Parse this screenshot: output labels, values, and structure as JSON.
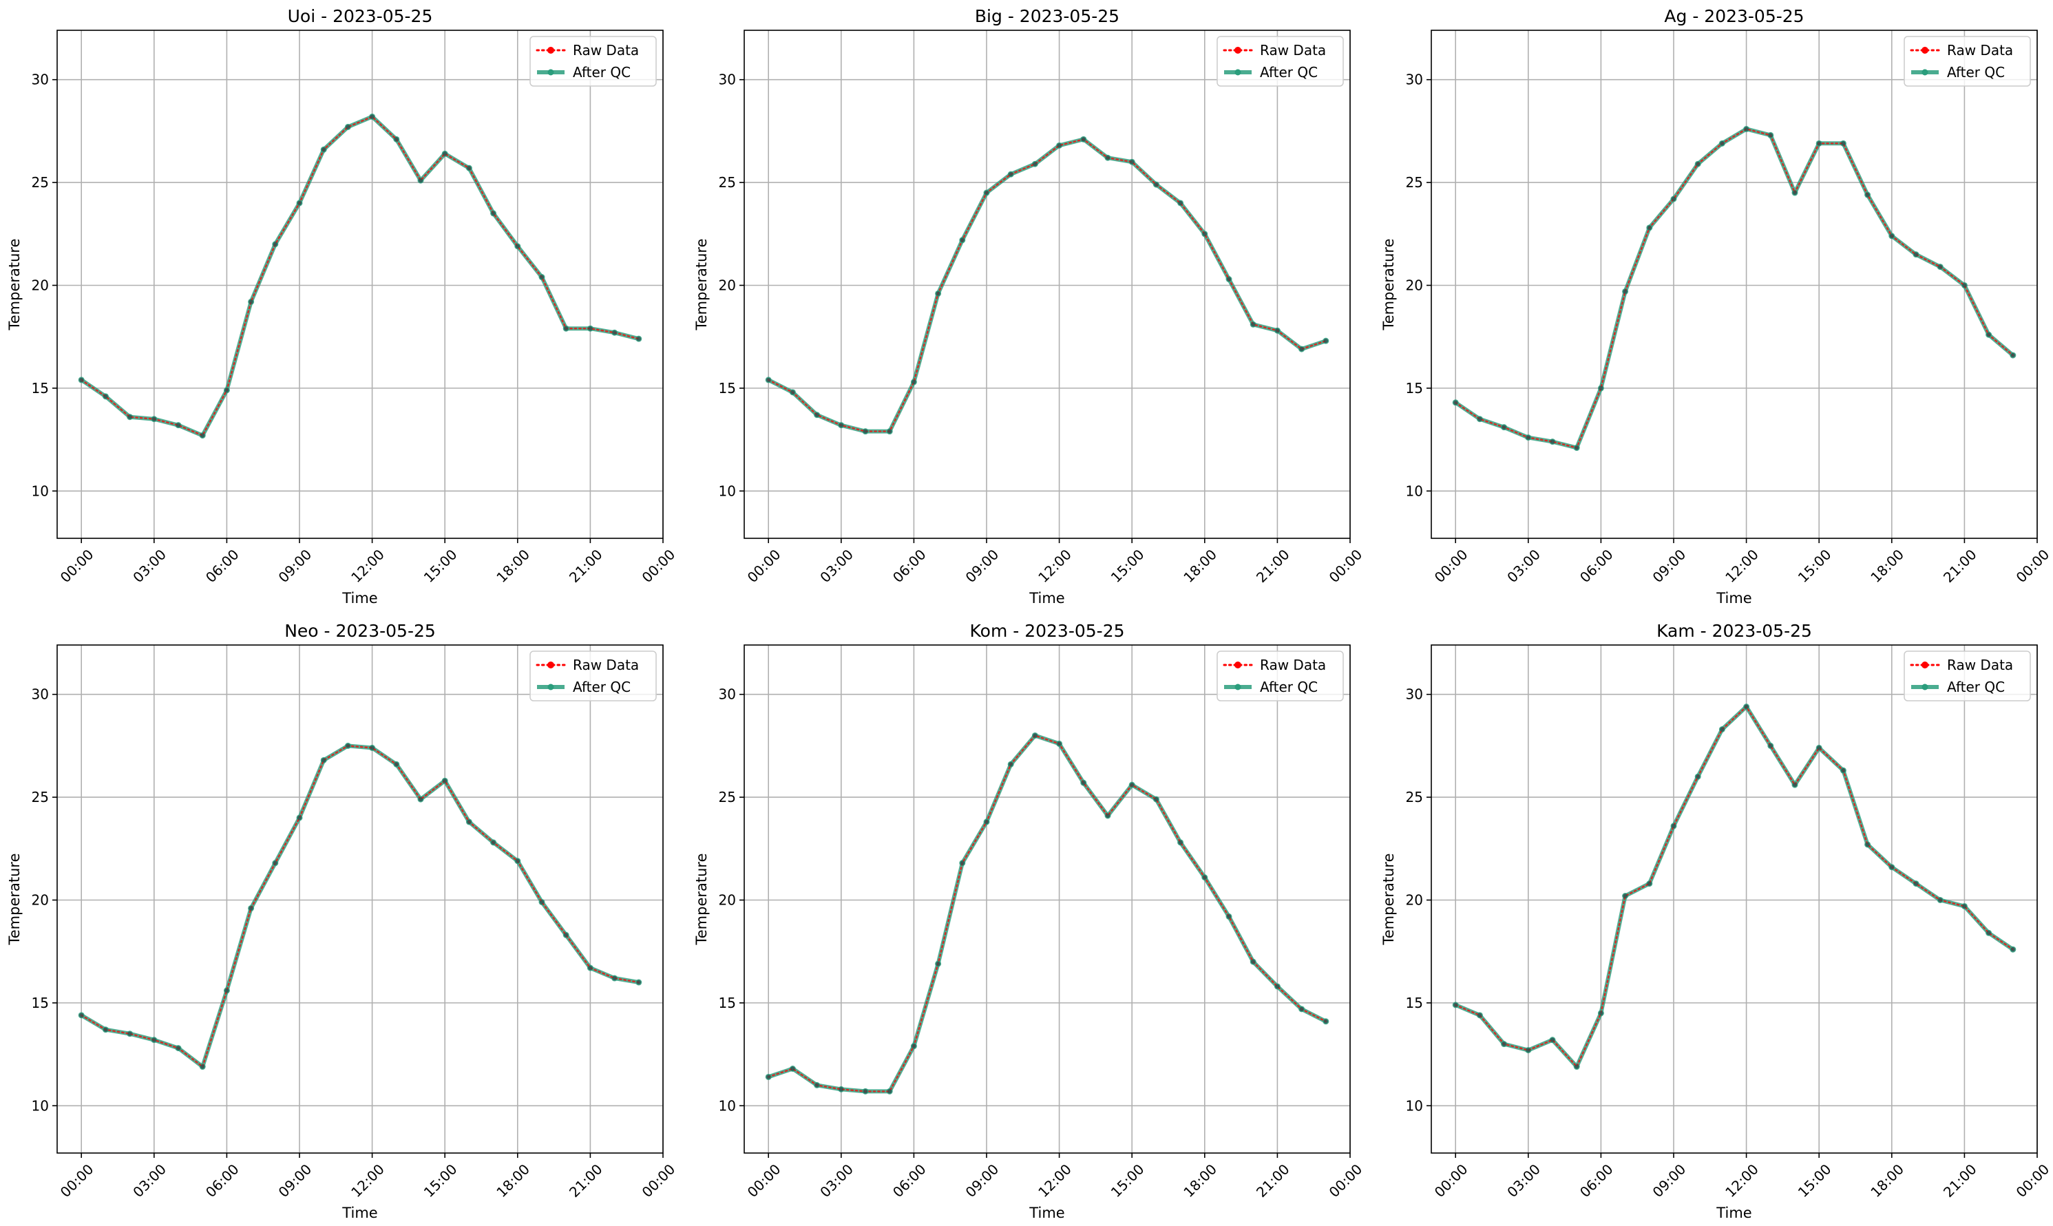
{
  "chart_data": [
    {
      "type": "line",
      "title": "Uoi - 2023-05-25",
      "xlabel": "Time",
      "ylabel": "Temperature",
      "ylim": [
        7.7,
        32.4
      ],
      "xlim": [
        "-01:00",
        "24:00"
      ],
      "x_ticks": [
        "00:00",
        "03:00",
        "06:00",
        "09:00",
        "12:00",
        "15:00",
        "18:00",
        "21:00",
        "00:00"
      ],
      "y_ticks": [
        10,
        15,
        20,
        25,
        30
      ],
      "grid": true,
      "legend": "top-right",
      "x": [
        "00:00",
        "01:00",
        "02:00",
        "03:00",
        "04:00",
        "05:00",
        "06:00",
        "07:00",
        "08:00",
        "09:00",
        "10:00",
        "11:00",
        "12:00",
        "13:00",
        "14:00",
        "15:00",
        "16:00",
        "17:00",
        "18:00",
        "19:00",
        "20:00",
        "21:00",
        "22:00",
        "23:00"
      ],
      "series": [
        {
          "name": "Raw Data",
          "color": "#ff0000",
          "style": "dotted",
          "values": [
            15.4,
            14.6,
            13.6,
            13.5,
            13.2,
            12.7,
            14.9,
            19.2,
            22.0,
            24.0,
            26.6,
            27.7,
            28.2,
            27.1,
            25.1,
            26.4,
            25.7,
            23.5,
            21.9,
            20.4,
            17.9,
            17.9,
            17.7,
            17.4
          ]
        },
        {
          "name": "After QC",
          "color": "#2a9d7c",
          "style": "solid",
          "values": [
            15.4,
            14.6,
            13.6,
            13.5,
            13.2,
            12.7,
            14.9,
            19.2,
            22.0,
            24.0,
            26.6,
            27.7,
            28.2,
            27.1,
            25.1,
            26.4,
            25.7,
            23.5,
            21.9,
            20.4,
            17.9,
            17.9,
            17.7,
            17.4
          ]
        }
      ]
    },
    {
      "type": "line",
      "title": "Big - 2023-05-25",
      "xlabel": "Time",
      "ylabel": "Temperature",
      "ylim": [
        7.7,
        32.4
      ],
      "xlim": [
        "-01:00",
        "24:00"
      ],
      "x_ticks": [
        "00:00",
        "03:00",
        "06:00",
        "09:00",
        "12:00",
        "15:00",
        "18:00",
        "21:00",
        "00:00"
      ],
      "y_ticks": [
        10,
        15,
        20,
        25,
        30
      ],
      "grid": true,
      "legend": "top-right",
      "x": [
        "00:00",
        "01:00",
        "02:00",
        "03:00",
        "04:00",
        "05:00",
        "06:00",
        "07:00",
        "08:00",
        "09:00",
        "10:00",
        "11:00",
        "12:00",
        "13:00",
        "14:00",
        "15:00",
        "16:00",
        "17:00",
        "18:00",
        "19:00",
        "20:00",
        "21:00",
        "22:00",
        "23:00"
      ],
      "series": [
        {
          "name": "Raw Data",
          "color": "#ff0000",
          "style": "dotted",
          "values": [
            15.4,
            14.8,
            13.7,
            13.2,
            12.9,
            12.9,
            15.3,
            19.6,
            22.2,
            24.5,
            25.4,
            25.9,
            26.8,
            27.1,
            26.2,
            26.0,
            24.9,
            24.0,
            22.5,
            20.3,
            18.1,
            17.8,
            16.9,
            17.3
          ]
        },
        {
          "name": "After QC",
          "color": "#2a9d7c",
          "style": "solid",
          "values": [
            15.4,
            14.8,
            13.7,
            13.2,
            12.9,
            12.9,
            15.3,
            19.6,
            22.2,
            24.5,
            25.4,
            25.9,
            26.8,
            27.1,
            26.2,
            26.0,
            24.9,
            24.0,
            22.5,
            20.3,
            18.1,
            17.8,
            16.9,
            17.3
          ]
        }
      ]
    },
    {
      "type": "line",
      "title": "Ag - 2023-05-25",
      "xlabel": "Time",
      "ylabel": "Temperature",
      "ylim": [
        7.7,
        32.4
      ],
      "xlim": [
        "-01:00",
        "24:00"
      ],
      "x_ticks": [
        "00:00",
        "03:00",
        "06:00",
        "09:00",
        "12:00",
        "15:00",
        "18:00",
        "21:00",
        "00:00"
      ],
      "y_ticks": [
        10,
        15,
        20,
        25,
        30
      ],
      "grid": true,
      "legend": "top-right",
      "x": [
        "00:00",
        "01:00",
        "02:00",
        "03:00",
        "04:00",
        "05:00",
        "06:00",
        "07:00",
        "08:00",
        "09:00",
        "10:00",
        "11:00",
        "12:00",
        "13:00",
        "14:00",
        "15:00",
        "16:00",
        "17:00",
        "18:00",
        "19:00",
        "20:00",
        "21:00",
        "22:00",
        "23:00"
      ],
      "series": [
        {
          "name": "Raw Data",
          "color": "#ff0000",
          "style": "dotted",
          "values": [
            14.3,
            13.5,
            13.1,
            12.6,
            12.4,
            12.1,
            15.0,
            19.7,
            22.8,
            24.2,
            25.9,
            26.9,
            27.6,
            27.3,
            24.5,
            26.9,
            26.9,
            24.4,
            22.4,
            21.5,
            20.9,
            20.0,
            17.6,
            16.6
          ]
        },
        {
          "name": "After QC",
          "color": "#2a9d7c",
          "style": "solid",
          "values": [
            14.3,
            13.5,
            13.1,
            12.6,
            12.4,
            12.1,
            15.0,
            19.7,
            22.8,
            24.2,
            25.9,
            26.9,
            27.6,
            27.3,
            24.5,
            26.9,
            26.9,
            24.4,
            22.4,
            21.5,
            20.9,
            20.0,
            17.6,
            16.6
          ]
        }
      ]
    },
    {
      "type": "line",
      "title": "Neo - 2023-05-25",
      "xlabel": "Time",
      "ylabel": "Temperature",
      "ylim": [
        7.7,
        32.4
      ],
      "xlim": [
        "-01:00",
        "24:00"
      ],
      "x_ticks": [
        "00:00",
        "03:00",
        "06:00",
        "09:00",
        "12:00",
        "15:00",
        "18:00",
        "21:00",
        "00:00"
      ],
      "y_ticks": [
        10,
        15,
        20,
        25,
        30
      ],
      "grid": true,
      "legend": "top-right",
      "x": [
        "00:00",
        "01:00",
        "02:00",
        "03:00",
        "04:00",
        "05:00",
        "06:00",
        "07:00",
        "08:00",
        "09:00",
        "10:00",
        "11:00",
        "12:00",
        "13:00",
        "14:00",
        "15:00",
        "16:00",
        "17:00",
        "18:00",
        "19:00",
        "20:00",
        "21:00",
        "22:00",
        "23:00"
      ],
      "series": [
        {
          "name": "Raw Data",
          "color": "#ff0000",
          "style": "dotted",
          "values": [
            14.4,
            13.7,
            13.5,
            13.2,
            12.8,
            11.9,
            15.6,
            19.6,
            21.8,
            24.0,
            26.8,
            27.5,
            27.4,
            26.6,
            24.9,
            25.8,
            23.8,
            22.8,
            21.9,
            19.9,
            18.3,
            16.7,
            16.2,
            16.0
          ]
        },
        {
          "name": "After QC",
          "color": "#2a9d7c",
          "style": "solid",
          "values": [
            14.4,
            13.7,
            13.5,
            13.2,
            12.8,
            11.9,
            15.6,
            19.6,
            21.8,
            24.0,
            26.8,
            27.5,
            27.4,
            26.6,
            24.9,
            25.8,
            23.8,
            22.8,
            21.9,
            19.9,
            18.3,
            16.7,
            16.2,
            16.0
          ]
        }
      ]
    },
    {
      "type": "line",
      "title": "Kom - 2023-05-25",
      "xlabel": "Time",
      "ylabel": "Temperature",
      "ylim": [
        7.7,
        32.4
      ],
      "xlim": [
        "-01:00",
        "24:00"
      ],
      "x_ticks": [
        "00:00",
        "03:00",
        "06:00",
        "09:00",
        "12:00",
        "15:00",
        "18:00",
        "21:00",
        "00:00"
      ],
      "y_ticks": [
        10,
        15,
        20,
        25,
        30
      ],
      "grid": true,
      "legend": "top-right",
      "x": [
        "00:00",
        "01:00",
        "02:00",
        "03:00",
        "04:00",
        "05:00",
        "06:00",
        "07:00",
        "08:00",
        "09:00",
        "10:00",
        "11:00",
        "12:00",
        "13:00",
        "14:00",
        "15:00",
        "16:00",
        "17:00",
        "18:00",
        "19:00",
        "20:00",
        "21:00",
        "22:00",
        "23:00"
      ],
      "series": [
        {
          "name": "Raw Data",
          "color": "#ff0000",
          "style": "dotted",
          "values": [
            11.4,
            11.8,
            11.0,
            10.8,
            10.7,
            10.7,
            12.9,
            16.9,
            21.8,
            23.8,
            26.6,
            28.0,
            27.6,
            25.7,
            24.1,
            25.6,
            24.9,
            22.8,
            21.1,
            19.2,
            17.0,
            15.8,
            14.7,
            14.1
          ]
        },
        {
          "name": "After QC",
          "color": "#2a9d7c",
          "style": "solid",
          "values": [
            11.4,
            11.8,
            11.0,
            10.8,
            10.7,
            10.7,
            12.9,
            16.9,
            21.8,
            23.8,
            26.6,
            28.0,
            27.6,
            25.7,
            24.1,
            25.6,
            24.9,
            22.8,
            21.1,
            19.2,
            17.0,
            15.8,
            14.7,
            14.1
          ]
        }
      ]
    },
    {
      "type": "line",
      "title": "Kam - 2023-05-25",
      "xlabel": "Time",
      "ylabel": "Temperature",
      "ylim": [
        7.7,
        32.4
      ],
      "xlim": [
        "-01:00",
        "24:00"
      ],
      "x_ticks": [
        "00:00",
        "03:00",
        "06:00",
        "09:00",
        "12:00",
        "15:00",
        "18:00",
        "21:00",
        "00:00"
      ],
      "y_ticks": [
        10,
        15,
        20,
        25,
        30
      ],
      "grid": true,
      "legend": "top-right",
      "x": [
        "00:00",
        "01:00",
        "02:00",
        "03:00",
        "04:00",
        "05:00",
        "06:00",
        "07:00",
        "08:00",
        "09:00",
        "10:00",
        "11:00",
        "12:00",
        "13:00",
        "14:00",
        "15:00",
        "16:00",
        "17:00",
        "18:00",
        "19:00",
        "20:00",
        "21:00",
        "22:00",
        "23:00"
      ],
      "series": [
        {
          "name": "Raw Data",
          "color": "#ff0000",
          "style": "dotted",
          "values": [
            14.9,
            14.4,
            13.0,
            12.7,
            13.2,
            11.9,
            14.5,
            20.2,
            20.8,
            23.6,
            26.0,
            28.3,
            29.4,
            27.5,
            25.6,
            27.4,
            26.3,
            22.7,
            21.6,
            20.8,
            20.0,
            19.7,
            18.4,
            17.6
          ]
        },
        {
          "name": "After QC",
          "color": "#2a9d7c",
          "style": "solid",
          "values": [
            14.9,
            14.4,
            13.0,
            12.7,
            13.2,
            11.9,
            14.5,
            20.2,
            20.8,
            23.6,
            26.0,
            28.3,
            29.4,
            27.5,
            25.6,
            27.4,
            26.3,
            22.7,
            21.6,
            20.8,
            20.0,
            19.7,
            18.4,
            17.6
          ]
        }
      ]
    }
  ]
}
